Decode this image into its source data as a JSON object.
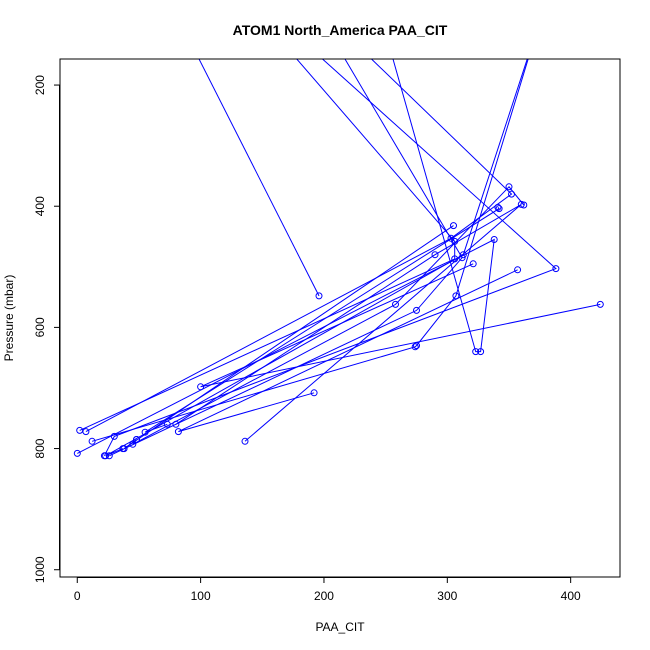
{
  "chart_data": {
    "type": "line",
    "title": "ATOM1 North_America PAA_CIT",
    "xlabel": "PAA_CIT",
    "ylabel": "Pressure (mbar)",
    "xlim": [
      -14,
      440
    ],
    "ylim": [
      1012,
      157
    ],
    "y_reversed": true,
    "x_ticks": [
      0,
      100,
      200,
      300,
      400
    ],
    "y_ticks": [
      200,
      400,
      600,
      800,
      1000
    ],
    "grid": false,
    "series_color": "#0000ff",
    "series": [
      {
        "x": [
          97,
          196
        ],
        "y": [
          150,
          548
        ]
      },
      {
        "x": [
          175,
          306,
          306,
          2
        ],
        "y": [
          150,
          458,
          487,
          770
        ]
      },
      {
        "x": [
          195,
          388,
          30,
          22
        ],
        "y": [
          150,
          503,
          780,
          812
        ]
      },
      {
        "x": [
          215,
          312,
          275,
          26
        ],
        "y": [
          150,
          485,
          572,
          812
        ]
      },
      {
        "x": [
          235,
          352,
          303,
          7
        ],
        "y": [
          150,
          380,
          453,
          772
        ]
      },
      {
        "x": [
          255,
          323,
          327,
          338,
          0
        ],
        "y": [
          150,
          640,
          640,
          455,
          808
        ]
      },
      {
        "x": [
          376,
          313,
          23,
          37
        ],
        "y": [
          87,
          480,
          812,
          800
        ]
      },
      {
        "x": [
          376,
          307,
          275,
          274,
          12
        ],
        "y": [
          87,
          548,
          630,
          632,
          788
        ]
      },
      {
        "x": [
          362,
          350,
          258,
          45,
          48
        ],
        "y": [
          398,
          368,
          562,
          793,
          785
        ]
      },
      {
        "x": [
          341,
          342,
          55,
          73
        ],
        "y": [
          402,
          404,
          773,
          760
        ]
      },
      {
        "x": [
          357,
          82,
          192
        ],
        "y": [
          505,
          772,
          708
        ]
      },
      {
        "x": [
          424,
          100,
          321
        ],
        "y": [
          562,
          698,
          495
        ]
      },
      {
        "x": [
          136,
          360,
          290,
          80
        ],
        "y": [
          788,
          397,
          480,
          760
        ]
      },
      {
        "x": [
          305,
          38,
          48
        ],
        "y": [
          432,
          800,
          785
        ]
      }
    ]
  }
}
